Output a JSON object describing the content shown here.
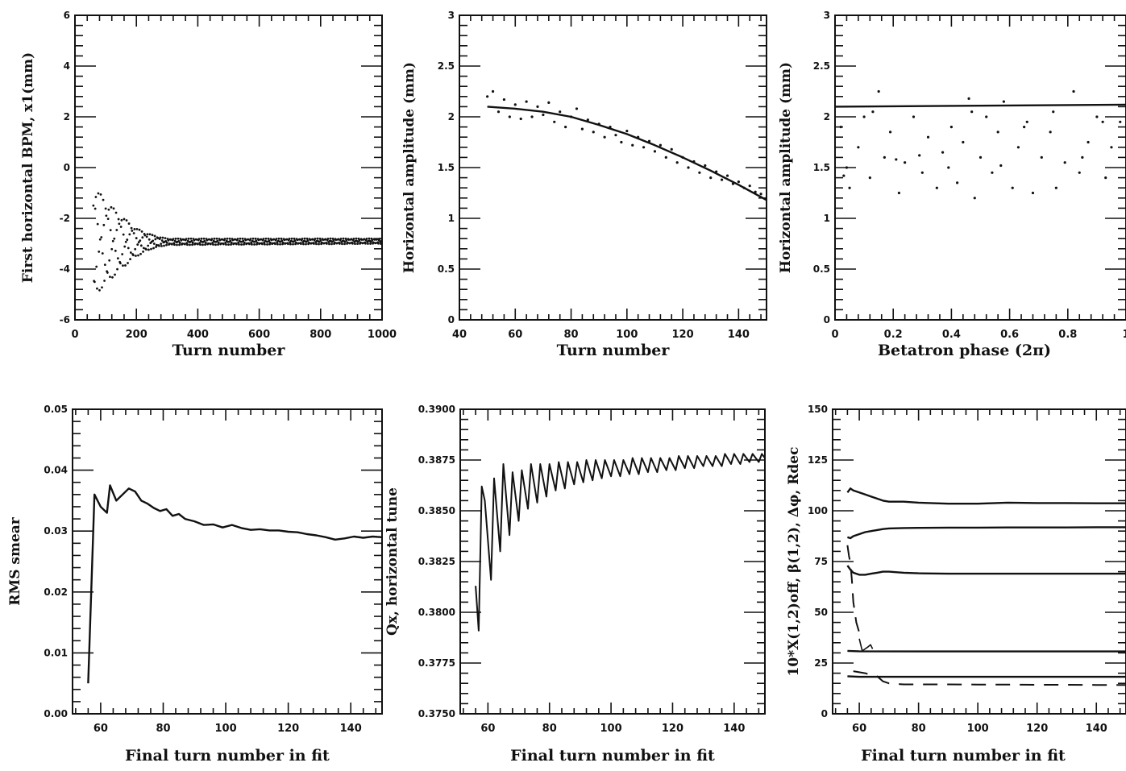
{
  "chart_data": [
    {
      "id": "p1",
      "type": "scatter",
      "xlabel": "Turn number",
      "ylabel": "First horizontal BPM, x1(mm)",
      "xlim": [
        0,
        1000
      ],
      "ylim": [
        -6,
        6
      ],
      "xticks": [
        0,
        200,
        400,
        600,
        800,
        1000
      ],
      "yticks": [
        -6,
        -4,
        -2,
        0,
        2,
        4,
        6
      ],
      "series": [
        {
          "style": "points",
          "description_values": "damped betatron oscillation converging to -2.9 mm",
          "envelope_upper": [
            [
              60,
              -0.7
            ],
            [
              100,
              -1.3
            ],
            [
              150,
              -1.9
            ],
            [
              200,
              -2.4
            ],
            [
              250,
              -2.65
            ],
            [
              300,
              -2.8
            ],
            [
              1000,
              -2.8
            ]
          ],
          "envelope_lower": [
            [
              60,
              -5.1
            ],
            [
              100,
              -4.6
            ],
            [
              150,
              -4.0
            ],
            [
              200,
              -3.5
            ],
            [
              250,
              -3.2
            ],
            [
              300,
              -3.05
            ],
            [
              1000,
              -3.0
            ]
          ],
          "center": -2.9
        }
      ]
    },
    {
      "id": "p2",
      "type": "scatter",
      "xlabel": "Turn number",
      "ylabel": "Horizontal amplitude (mm)",
      "xlim": [
        40,
        150
      ],
      "ylim": [
        0.0,
        3.0
      ],
      "xticks": [
        40,
        60,
        80,
        100,
        120,
        140
      ],
      "yticks": [
        0.0,
        0.5,
        1.0,
        1.5,
        2.0,
        2.5,
        3.0
      ],
      "series": [
        {
          "style": "points",
          "x": [
            50,
            52,
            54,
            56,
            58,
            60,
            62,
            64,
            66,
            68,
            70,
            72,
            74,
            76,
            78,
            80,
            82,
            84,
            86,
            88,
            90,
            92,
            94,
            96,
            98,
            100,
            102,
            104,
            106,
            108,
            110,
            112,
            114,
            116,
            118,
            120,
            122,
            124,
            126,
            128,
            130,
            132,
            134,
            136,
            138,
            140,
            142,
            144,
            146,
            148,
            150
          ],
          "y": [
            2.2,
            2.25,
            2.05,
            2.17,
            2.0,
            2.12,
            1.98,
            2.15,
            2.0,
            2.1,
            2.02,
            2.14,
            1.95,
            2.05,
            1.9,
            2.0,
            2.08,
            1.88,
            1.97,
            1.85,
            1.93,
            1.8,
            1.9,
            1.82,
            1.75,
            1.86,
            1.72,
            1.8,
            1.7,
            1.76,
            1.66,
            1.72,
            1.6,
            1.68,
            1.55,
            1.6,
            1.5,
            1.56,
            1.45,
            1.52,
            1.4,
            1.46,
            1.38,
            1.42,
            1.34,
            1.36,
            1.3,
            1.32,
            1.26,
            1.24,
            1.2
          ]
        },
        {
          "style": "line",
          "x": [
            50,
            60,
            70,
            80,
            90,
            100,
            110,
            120,
            130,
            140,
            150
          ],
          "y": [
            2.1,
            2.08,
            2.05,
            2.0,
            1.92,
            1.83,
            1.72,
            1.6,
            1.47,
            1.33,
            1.18
          ]
        }
      ]
    },
    {
      "id": "p3",
      "type": "scatter",
      "xlabel": "Betatron phase (2π)",
      "ylabel": "Horizontal amplitude (mm)",
      "xlim": [
        0.0,
        1.0
      ],
      "ylim": [
        0.0,
        3.0
      ],
      "xticks": [
        0,
        0.2,
        0.4,
        0.6,
        0.8,
        1.0
      ],
      "xtick_labels": [
        "0",
        "0.2",
        "0.4",
        "0.6",
        "0.8",
        "1"
      ],
      "yticks": [
        0.0,
        0.5,
        1.0,
        1.5,
        2.0,
        2.5,
        3.0
      ],
      "series": [
        {
          "style": "points",
          "x": [
            0.02,
            0.04,
            0.05,
            0.08,
            0.1,
            0.12,
            0.15,
            0.17,
            0.19,
            0.22,
            0.24,
            0.27,
            0.3,
            0.32,
            0.35,
            0.37,
            0.4,
            0.42,
            0.44,
            0.46,
            0.48,
            0.5,
            0.52,
            0.54,
            0.56,
            0.58,
            0.61,
            0.63,
            0.66,
            0.68,
            0.71,
            0.74,
            0.76,
            0.79,
            0.82,
            0.84,
            0.87,
            0.9,
            0.93,
            0.95,
            0.98,
            0.03,
            0.13,
            0.21,
            0.29,
            0.39,
            0.47,
            0.57,
            0.65,
            0.75,
            0.85,
            0.92
          ],
          "y": [
            1.9,
            1.5,
            1.3,
            1.7,
            2.0,
            1.4,
            2.25,
            1.6,
            1.85,
            1.25,
            1.55,
            2.0,
            1.45,
            1.8,
            1.3,
            1.65,
            1.9,
            1.35,
            1.75,
            2.18,
            1.2,
            1.6,
            2.0,
            1.45,
            1.85,
            2.15,
            1.3,
            1.7,
            1.95,
            1.25,
            1.6,
            1.85,
            1.3,
            1.55,
            2.25,
            1.45,
            1.75,
            2.0,
            1.4,
            1.7,
            1.95,
            1.42,
            2.05,
            1.58,
            1.62,
            1.5,
            2.05,
            1.52,
            1.9,
            2.05,
            1.6,
            1.95
          ]
        },
        {
          "style": "line",
          "x": [
            0.0,
            1.0
          ],
          "y": [
            2.1,
            2.12
          ]
        }
      ]
    },
    {
      "id": "p4",
      "type": "line",
      "xlabel": "Final turn number in fit",
      "ylabel": "RMS smear",
      "xlim": [
        51,
        150
      ],
      "ylim": [
        0.0,
        0.05
      ],
      "xticks": [
        60,
        80,
        100,
        120,
        140
      ],
      "yticks": [
        0.0,
        0.01,
        0.02,
        0.03,
        0.04,
        0.05
      ],
      "ytick_labels": [
        "0.00",
        "0.01",
        "0.02",
        "0.03",
        "0.04",
        "0.05"
      ],
      "series": [
        {
          "x": [
            56,
            58,
            60,
            62,
            63,
            65,
            67,
            69,
            71,
            73,
            75,
            77,
            79,
            81,
            83,
            85,
            87,
            90,
            93,
            96,
            99,
            102,
            105,
            108,
            111,
            114,
            117,
            120,
            123,
            126,
            129,
            132,
            135,
            138,
            141,
            144,
            147,
            150
          ],
          "y": [
            0.005,
            0.036,
            0.034,
            0.033,
            0.0375,
            0.035,
            0.036,
            0.037,
            0.0365,
            0.035,
            0.0345,
            0.0338,
            0.0333,
            0.0336,
            0.0325,
            0.0328,
            0.032,
            0.0316,
            0.031,
            0.0311,
            0.0306,
            0.031,
            0.0305,
            0.0302,
            0.0303,
            0.0301,
            0.0301,
            0.0299,
            0.0298,
            0.0295,
            0.0293,
            0.029,
            0.0286,
            0.0288,
            0.0291,
            0.0289,
            0.0291,
            0.029
          ]
        }
      ]
    },
    {
      "id": "p5",
      "type": "line",
      "xlabel": "Final turn number in fit",
      "ylabel": "Qx, horizontal tune",
      "xlim": [
        51,
        150
      ],
      "ylim": [
        0.375,
        0.39
      ],
      "xticks": [
        60,
        80,
        100,
        120,
        140
      ],
      "yticks": [
        0.375,
        0.3775,
        0.38,
        0.3825,
        0.385,
        0.3875,
        0.39
      ],
      "ytick_labels": [
        "0.3750",
        "0.3775",
        "0.3800",
        "0.3825",
        "0.3850",
        "0.3875",
        "0.3900"
      ],
      "series": [
        {
          "style": "oscillation",
          "x": [
            56,
            57,
            58,
            59,
            61,
            62,
            64,
            65,
            67,
            68,
            70,
            71,
            73,
            74,
            76,
            77,
            79,
            80,
            82,
            83,
            85,
            86,
            88,
            89,
            91,
            92,
            94,
            95,
            97,
            98,
            100,
            101,
            103,
            104,
            106,
            107,
            109,
            110,
            112,
            113,
            115,
            116,
            118,
            119,
            121,
            122,
            124,
            125,
            127,
            128,
            130,
            131,
            133,
            134,
            136,
            137,
            139,
            140,
            142,
            143,
            145,
            146,
            148,
            149,
            150
          ],
          "y": [
            0.3813,
            0.3791,
            0.3862,
            0.3855,
            0.3816,
            0.3866,
            0.383,
            0.3873,
            0.3838,
            0.3869,
            0.3845,
            0.387,
            0.3851,
            0.3873,
            0.3854,
            0.3873,
            0.3857,
            0.3873,
            0.386,
            0.3874,
            0.3861,
            0.3874,
            0.3863,
            0.3874,
            0.3864,
            0.3875,
            0.3865,
            0.3875,
            0.3866,
            0.3875,
            0.3867,
            0.3875,
            0.3867,
            0.3875,
            0.3868,
            0.3876,
            0.3868,
            0.3876,
            0.3869,
            0.3876,
            0.3869,
            0.3876,
            0.387,
            0.3876,
            0.387,
            0.3877,
            0.3871,
            0.3877,
            0.3871,
            0.3877,
            0.3872,
            0.3877,
            0.3872,
            0.3877,
            0.3872,
            0.3878,
            0.3873,
            0.3878,
            0.3873,
            0.3878,
            0.3874,
            0.3878,
            0.3874,
            0.3878,
            0.3876
          ]
        }
      ]
    },
    {
      "id": "p6",
      "type": "line",
      "xlabel": "Final turn number in fit",
      "ylabel": "10*X(1,2)off, β(1,2), Δφ, Rdec",
      "xlim": [
        51,
        150
      ],
      "ylim": [
        0,
        150
      ],
      "xticks": [
        60,
        80,
        100,
        120,
        140
      ],
      "yticks": [
        0,
        25,
        50,
        75,
        100,
        125,
        150
      ],
      "series": [
        {
          "style": "solid",
          "x": [
            56,
            57,
            58,
            60,
            62,
            64,
            66,
            68,
            70,
            75,
            80,
            90,
            100,
            110,
            120,
            130,
            140,
            150
          ],
          "y": [
            109,
            111,
            110,
            109,
            108,
            107,
            106,
            105,
            104.5,
            104.5,
            104,
            103.5,
            103.5,
            104,
            103.8,
            103.8,
            103.7,
            103.7
          ]
        },
        {
          "style": "solid",
          "x": [
            56,
            57,
            58,
            60,
            62,
            64,
            66,
            68,
            70,
            75,
            80,
            90,
            100,
            110,
            120,
            130,
            140,
            150
          ],
          "y": [
            87,
            86.5,
            87.5,
            88.5,
            89.5,
            90,
            90.5,
            91,
            91.3,
            91.5,
            91.6,
            91.7,
            91.7,
            91.8,
            91.8,
            91.8,
            91.9,
            91.9
          ]
        },
        {
          "style": "solid",
          "x": [
            56,
            57,
            58,
            60,
            62,
            64,
            66,
            68,
            70,
            75,
            80,
            90,
            100,
            110,
            120,
            130,
            140,
            150
          ],
          "y": [
            73,
            71,
            69.5,
            68.5,
            68.5,
            69,
            69.5,
            70,
            70,
            69.5,
            69.2,
            69,
            69,
            69,
            69,
            69,
            69,
            69
          ]
        },
        {
          "style": "dashed",
          "x": [
            56,
            56.5,
            57,
            57.5,
            58,
            59,
            60
          ],
          "y": [
            83,
            78,
            74,
            66,
            55,
            45,
            40
          ]
        },
        {
          "style": "solid",
          "x": [
            56,
            60,
            80,
            100,
            120,
            140,
            150
          ],
          "y": [
            31,
            30.8,
            30.7,
            30.7,
            30.7,
            30.7,
            30.7
          ]
        },
        {
          "style": "scribble",
          "x": [
            60,
            60.5,
            61,
            62,
            63,
            63.8,
            64.5
          ],
          "y": [
            37,
            34,
            31,
            32,
            33,
            34,
            32
          ]
        },
        {
          "style": "solid",
          "x": [
            56,
            60,
            80,
            100,
            120,
            140,
            150
          ],
          "y": [
            18.5,
            18.2,
            18.2,
            18.2,
            18.2,
            18.2,
            18.2
          ]
        },
        {
          "style": "dashed",
          "x": [
            58,
            62,
            64,
            66,
            68,
            70,
            75,
            80,
            90,
            100,
            110,
            120,
            130,
            140,
            150
          ],
          "y": [
            21,
            20,
            19,
            18.5,
            16,
            15,
            14.5,
            14.5,
            14.5,
            14.4,
            14.4,
            14.3,
            14.3,
            14.2,
            14.2
          ]
        }
      ]
    }
  ]
}
